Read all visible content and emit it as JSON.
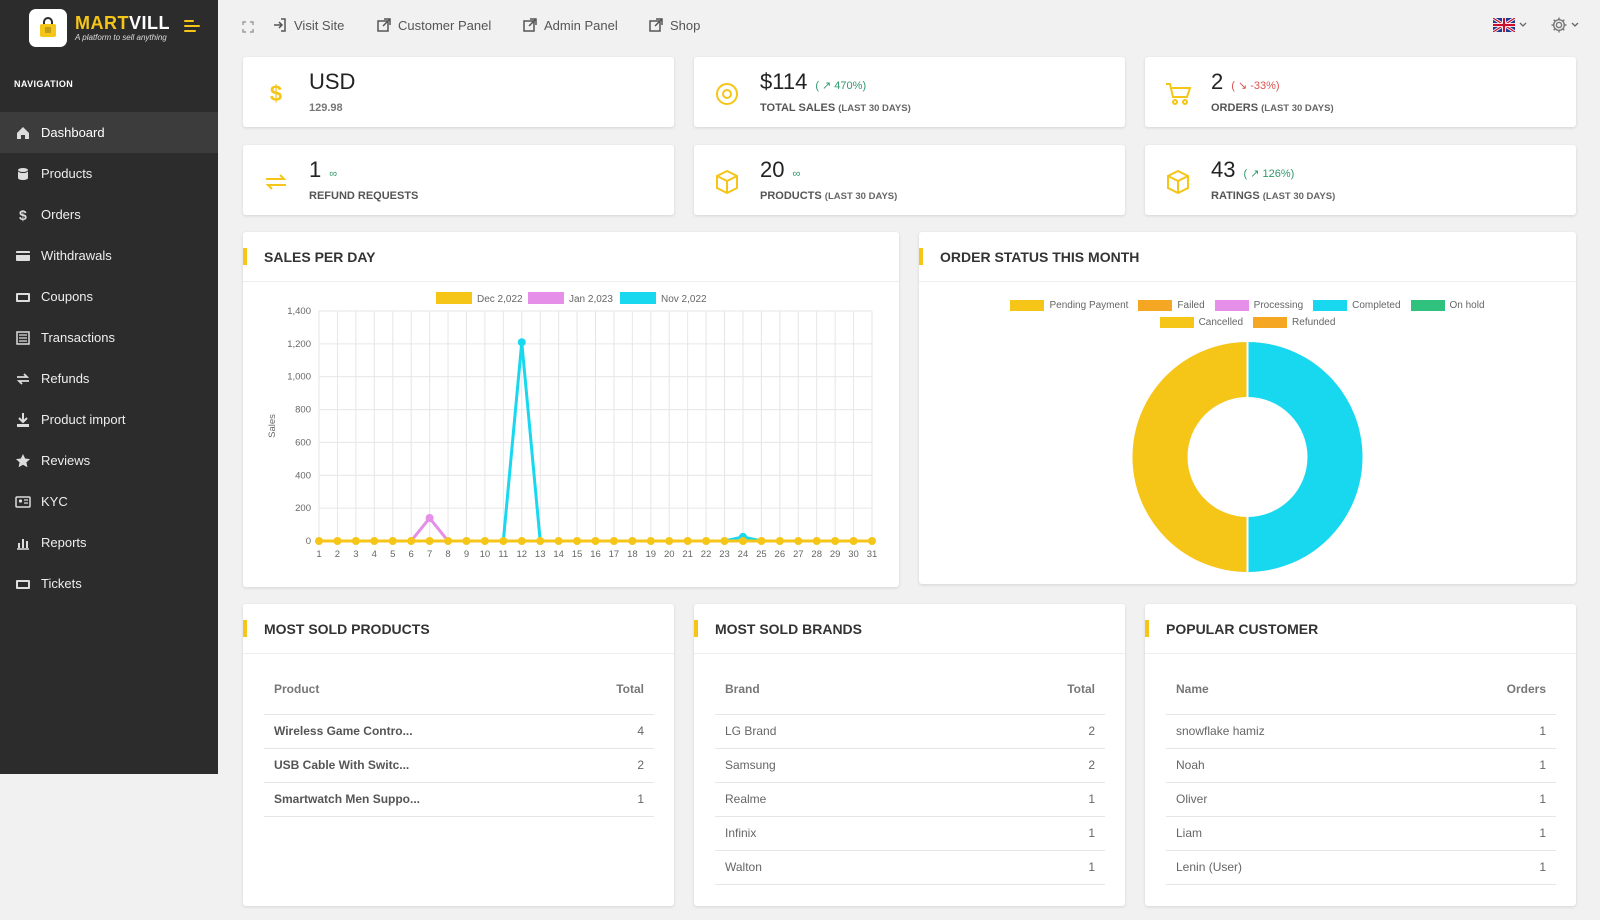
{
  "brand": {
    "name_part1": "MART",
    "name_part2": "VILL",
    "tagline": "A platform to sell anything"
  },
  "nav": {
    "title": "NAVIGATION",
    "items": [
      {
        "label": "Dashboard",
        "icon": "home-icon",
        "active": true
      },
      {
        "label": "Products",
        "icon": "database-icon"
      },
      {
        "label": "Orders",
        "icon": "dollar-icon"
      },
      {
        "label": "Withdrawals",
        "icon": "card-icon"
      },
      {
        "label": "Coupons",
        "icon": "ticket-icon"
      },
      {
        "label": "Transactions",
        "icon": "list-icon"
      },
      {
        "label": "Refunds",
        "icon": "exchange-icon"
      },
      {
        "label": "Product import",
        "icon": "download-icon"
      },
      {
        "label": "Reviews",
        "icon": "star-icon"
      },
      {
        "label": "KYC",
        "icon": "id-card-icon"
      },
      {
        "label": "Reports",
        "icon": "bar-chart-icon"
      },
      {
        "label": "Tickets",
        "icon": "ticket-icon"
      }
    ]
  },
  "topbar": {
    "links": [
      {
        "label": "Visit Site",
        "icon": "sign-in-icon"
      },
      {
        "label": "Customer Panel",
        "icon": "external-link-icon"
      },
      {
        "label": "Admin Panel",
        "icon": "external-link-icon"
      },
      {
        "label": "Shop",
        "icon": "external-link-icon"
      }
    ]
  },
  "stats": [
    {
      "value": "USD",
      "sub": "129.98",
      "change": "",
      "label": "",
      "label_note": ""
    },
    {
      "value": "$114",
      "change": "( ↗ 470%)",
      "trend": "up",
      "label": "TOTAL SALES",
      "label_note": "(LAST 30 DAYS)"
    },
    {
      "value": "2",
      "change": "( ↘ -33%)",
      "trend": "down",
      "label": "ORDERS",
      "label_note": "(LAST 30 DAYS)"
    },
    {
      "value": "1",
      "change": "∞",
      "trend": "up",
      "label": "REFUND REQUESTS",
      "label_note": ""
    },
    {
      "value": "20",
      "change": "∞",
      "trend": "up",
      "label": "PRODUCTS",
      "label_note": "(LAST 30 DAYS)"
    },
    {
      "value": "43",
      "change": "( ↗ 126%)",
      "trend": "up",
      "label": "RATINGS",
      "label_note": "(LAST 30 DAYS)"
    }
  ],
  "sales_panel": {
    "title": "SALES PER DAY"
  },
  "order_panel": {
    "title": "ORDER STATUS THIS MONTH"
  },
  "chart_data": [
    {
      "type": "line",
      "ylabel": "Sales",
      "ylim": [
        0,
        1400
      ],
      "yticks": [
        0,
        200,
        400,
        600,
        800,
        1000,
        1200,
        1400
      ],
      "x": [
        1,
        2,
        3,
        4,
        5,
        6,
        7,
        8,
        9,
        10,
        11,
        12,
        13,
        14,
        15,
        16,
        17,
        18,
        19,
        20,
        21,
        22,
        23,
        24,
        25,
        26,
        27,
        28,
        29,
        30,
        31
      ],
      "legend_position": "top",
      "series": [
        {
          "name": "Dec 2,022",
          "color": "#f5c518",
          "values": [
            0,
            0,
            0,
            0,
            0,
            0,
            0,
            0,
            0,
            0,
            0,
            0,
            0,
            0,
            0,
            0,
            0,
            0,
            0,
            0,
            0,
            0,
            0,
            0,
            0,
            0,
            0,
            0,
            0,
            0,
            0
          ]
        },
        {
          "name": "Jan 2,023",
          "color": "#e58fe8",
          "values": [
            0,
            0,
            0,
            0,
            0,
            0,
            140,
            0,
            0,
            0,
            0,
            0,
            0,
            0,
            0,
            0,
            0,
            0,
            0,
            0,
            0,
            0,
            0,
            0,
            0,
            0,
            0,
            0,
            0,
            0,
            0
          ]
        },
        {
          "name": "Nov 2,022",
          "color": "#18d8f0",
          "values": [
            0,
            0,
            0,
            0,
            0,
            0,
            0,
            0,
            0,
            0,
            0,
            1210,
            0,
            0,
            0,
            0,
            0,
            0,
            0,
            0,
            0,
            0,
            0,
            25,
            0,
            0,
            0,
            0,
            0,
            0,
            0
          ]
        }
      ]
    },
    {
      "type": "pie",
      "donut": true,
      "legend_position": "top",
      "labels": [
        "Pending Payment",
        "Failed",
        "Processing",
        "Completed",
        "On hold",
        "Cancelled",
        "Refunded"
      ],
      "colors": [
        "#f5c518",
        "#f5a623",
        "#e58fe8",
        "#18d8f0",
        "#2ec27e",
        "#f5c518",
        "#f5a623"
      ],
      "values": [
        1,
        0,
        0,
        1,
        0,
        0,
        0
      ]
    }
  ],
  "most_sold_products": {
    "title": "MOST SOLD PRODUCTS",
    "headers": [
      "Product",
      "Total"
    ],
    "rows": [
      [
        "Wireless Game Contro...",
        "4"
      ],
      [
        "USB Cable With Switc...",
        "2"
      ],
      [
        "Smartwatch Men Suppo...",
        "1"
      ]
    ]
  },
  "most_sold_brands": {
    "title": "MOST SOLD BRANDS",
    "headers": [
      "Brand",
      "Total"
    ],
    "rows": [
      [
        "LG Brand",
        "2"
      ],
      [
        "Samsung",
        "2"
      ],
      [
        "Realme",
        "1"
      ],
      [
        "Infinix",
        "1"
      ],
      [
        "Walton",
        "1"
      ]
    ]
  },
  "popular_customer": {
    "title": "POPULAR CUSTOMER",
    "headers": [
      "Name",
      "Orders"
    ],
    "rows": [
      [
        "snowflake hamiz",
        "1"
      ],
      [
        "Noah",
        "1"
      ],
      [
        "Oliver",
        "1"
      ],
      [
        "Liam",
        "1"
      ],
      [
        "Lenin (User)",
        "1"
      ]
    ]
  }
}
